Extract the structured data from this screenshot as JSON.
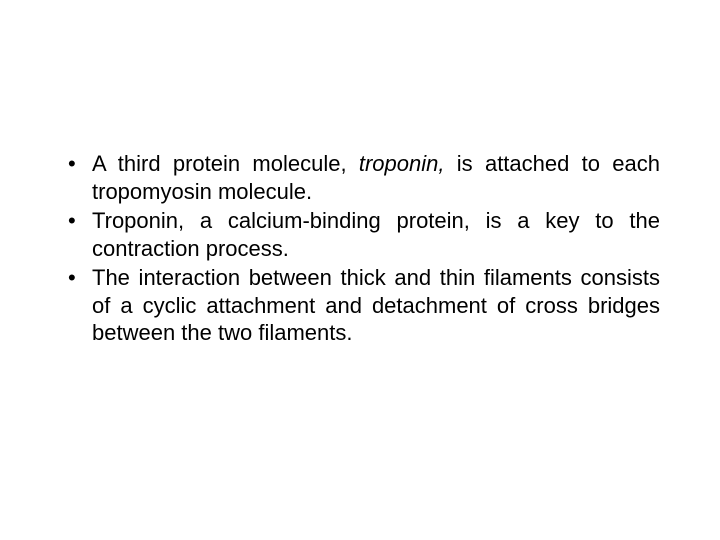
{
  "slide": {
    "bullets": [
      {
        "pre": "A third protein molecule, ",
        "em": "troponin,",
        "post": " is attached to each tropomyosin molecule."
      },
      {
        "text": "Troponin, a calcium-binding protein, is a key to the contraction process."
      },
      {
        "text": "The interaction between thick and thin filaments consists of a cyclic attachment and detachment of cross bridges between the two filaments."
      }
    ],
    "colors": {
      "background": "#ffffff",
      "text": "#000000"
    },
    "typography": {
      "font_family": "Arial",
      "font_size_pt": 17,
      "line_height": 1.25
    }
  }
}
